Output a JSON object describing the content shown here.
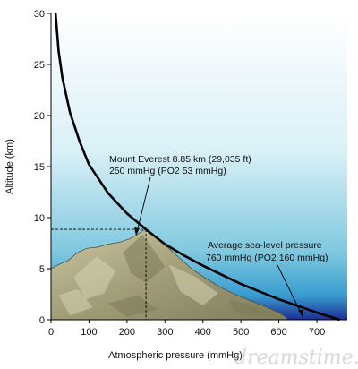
{
  "chart_data": {
    "type": "line",
    "title": "",
    "xlabel": "Atmospheric pressure (mmHg)",
    "ylabel": "Altitude (km)",
    "xlim": [
      0,
      780
    ],
    "ylim": [
      0,
      30
    ],
    "x_ticks": [
      0,
      100,
      200,
      300,
      400,
      500,
      600,
      700
    ],
    "y_ticks": [
      0,
      5,
      10,
      15,
      20,
      25,
      30
    ],
    "grid": false,
    "series": [
      {
        "values": [
          {
            "x": 760,
            "y": 0
          },
          {
            "x": 700,
            "y": 0.7
          },
          {
            "x": 600,
            "y": 2.0
          },
          {
            "x": 500,
            "y": 3.5
          },
          {
            "x": 400,
            "y": 5.3
          },
          {
            "x": 350,
            "y": 6.3
          },
          {
            "x": 300,
            "y": 7.4
          },
          {
            "x": 250,
            "y": 8.85
          },
          {
            "x": 200,
            "y": 10.4
          },
          {
            "x": 150,
            "y": 12.4
          },
          {
            "x": 100,
            "y": 15.2
          },
          {
            "x": 75,
            "y": 17.5
          },
          {
            "x": 50,
            "y": 20.3
          },
          {
            "x": 30,
            "y": 23.7
          },
          {
            "x": 20,
            "y": 26.3
          },
          {
            "x": 12,
            "y": 30
          }
        ]
      }
    ],
    "annotations": [
      {
        "lines": [
          "Mount Everest 8.85 km (29,035 ft)",
          "250 mmHg (PO2 53 mmHg)"
        ],
        "point": {
          "x": 250,
          "y": 8.85
        }
      },
      {
        "lines": [
          "Average sea-level pressure",
          "760 mmHg (PO2 160 mmHg)"
        ],
        "point": {
          "x": 760,
          "y": 0
        }
      }
    ]
  },
  "watermark": "dreamstime.com",
  "colors": {
    "curve": "#000000",
    "sky_top": "#ffffff",
    "sky_mid": "#8fd0e3",
    "sky_bottom": "#1a3a9c",
    "mountain": "#a9a685"
  }
}
